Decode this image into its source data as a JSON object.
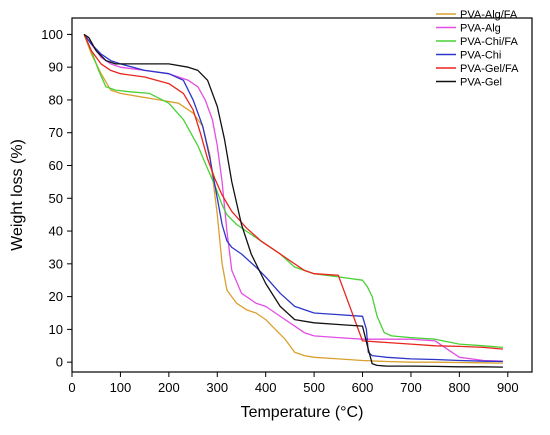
{
  "chart_data": {
    "type": "line",
    "title": "",
    "xlabel": "Temperature (°C)",
    "ylabel": "Weight loss (%)",
    "xlim": [
      0,
      950
    ],
    "ylim": [
      -3,
      105
    ],
    "xticks": [
      0,
      100,
      200,
      300,
      400,
      500,
      600,
      700,
      800,
      900
    ],
    "yticks": [
      0,
      10,
      20,
      30,
      40,
      50,
      60,
      70,
      80,
      90,
      100
    ],
    "legend_position": "top-right",
    "grid": false,
    "series": [
      {
        "name": "PVA-Alg/FA",
        "color": "#d9a030",
        "x": [
          25,
          40,
          60,
          80,
          100,
          140,
          180,
          220,
          250,
          270,
          285,
          300,
          310,
          320,
          340,
          360,
          380,
          400,
          420,
          440,
          460,
          480,
          500,
          550,
          600,
          650,
          700,
          750,
          800,
          850,
          890
        ],
        "y": [
          100,
          94,
          88,
          83,
          82,
          81,
          80,
          79,
          76,
          72,
          63,
          45,
          30,
          22,
          18,
          16,
          15,
          13,
          10,
          7,
          3,
          2,
          1.5,
          1,
          0.5,
          0.2,
          0,
          0,
          -0.1,
          -0.2,
          -0.3
        ]
      },
      {
        "name": "PVA-Alg",
        "color": "#e34ee3",
        "x": [
          25,
          40,
          60,
          80,
          100,
          150,
          200,
          240,
          260,
          275,
          290,
          300,
          310,
          320,
          330,
          350,
          380,
          400,
          420,
          440,
          460,
          480,
          500,
          550,
          600,
          650,
          700,
          750,
          800,
          850,
          890
        ],
        "y": [
          100,
          97,
          93,
          91,
          90,
          89,
          88,
          86,
          84,
          80,
          74,
          66,
          55,
          40,
          28,
          21,
          18,
          17,
          15,
          13,
          11,
          9,
          8,
          7.5,
          7,
          7,
          7,
          6.5,
          1.5,
          0.5,
          0.3
        ]
      },
      {
        "name": "PVA-Chi/FA",
        "color": "#49d135",
        "x": [
          25,
          40,
          55,
          70,
          90,
          120,
          160,
          200,
          230,
          260,
          280,
          295,
          310,
          320,
          340,
          360,
          380,
          400,
          430,
          460,
          500,
          550,
          600,
          610,
          620,
          630,
          645,
          660,
          700,
          750,
          800,
          850,
          890
        ],
        "y": [
          100,
          95,
          89,
          84,
          83,
          82.5,
          82,
          79,
          74,
          66,
          59,
          54,
          48,
          45,
          42,
          40,
          38,
          36,
          33,
          29,
          27,
          26,
          25,
          23,
          20,
          14,
          9,
          8,
          7.5,
          7,
          5.5,
          5,
          4.5
        ]
      },
      {
        "name": "PVA-Chi",
        "color": "#2c36c8",
        "x": [
          25,
          40,
          60,
          80,
          100,
          150,
          200,
          230,
          250,
          270,
          285,
          300,
          310,
          320,
          330,
          350,
          380,
          400,
          430,
          460,
          500,
          550,
          600,
          608,
          612,
          620,
          650,
          700,
          750,
          800,
          850,
          890
        ],
        "y": [
          100,
          97,
          94,
          92,
          91,
          89,
          88,
          86,
          80,
          72,
          62,
          50,
          42,
          37,
          35,
          33,
          29,
          26,
          21,
          17,
          15,
          14.5,
          14,
          10,
          3,
          2,
          1.5,
          1,
          0.8,
          0.5,
          0.3,
          0.2
        ]
      },
      {
        "name": "PVA-Gel/FA",
        "color": "#e8251f",
        "x": [
          25,
          40,
          60,
          80,
          100,
          150,
          200,
          230,
          250,
          265,
          280,
          295,
          310,
          330,
          360,
          390,
          420,
          450,
          480,
          500,
          550,
          600,
          650,
          700,
          750,
          800,
          850,
          890
        ],
        "y": [
          100,
          95,
          91,
          89,
          88,
          87,
          85,
          82,
          77,
          70,
          62,
          56,
          51,
          46,
          41,
          37,
          34,
          31,
          28,
          27,
          26.5,
          6.5,
          6,
          5.5,
          5,
          4.8,
          4.5,
          4
        ]
      },
      {
        "name": "PVA-Gel",
        "color": "#111111",
        "x": [
          25,
          35,
          50,
          70,
          90,
          120,
          160,
          200,
          240,
          260,
          280,
          300,
          315,
          330,
          350,
          370,
          400,
          430,
          460,
          500,
          550,
          600,
          610,
          620,
          630,
          650,
          700,
          750,
          800,
          850,
          890
        ],
        "y": [
          100,
          99,
          95,
          92,
          91,
          91,
          91,
          91,
          90,
          89,
          86,
          78,
          68,
          55,
          42,
          33,
          24,
          17,
          13,
          12,
          11.5,
          11,
          5,
          -0.5,
          -1,
          -1.2,
          -1.2,
          -1.3,
          -1.4,
          -1.4,
          -1.5
        ]
      }
    ]
  }
}
